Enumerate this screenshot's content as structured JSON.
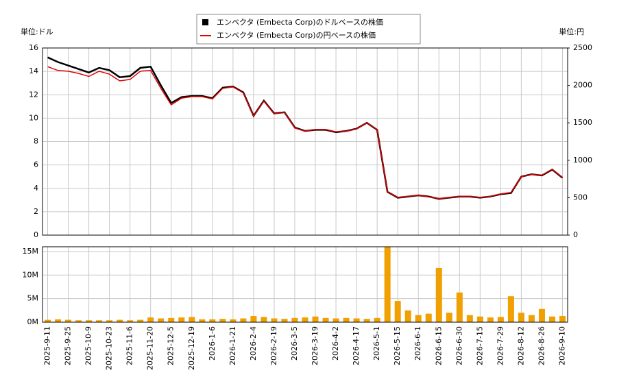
{
  "chart_data": [
    {
      "type": "line",
      "left_unit": "単位:ドル",
      "right_unit": "単位:円",
      "x": [
        "2025-9-11",
        "2025-9-18",
        "2025-9-25",
        "2025-10-2",
        "2025-10-9",
        "2025-10-16",
        "2025-10-23",
        "2025-10-30",
        "2025-11-6",
        "2025-11-13",
        "2025-11-20",
        "2025-11-27",
        "2025-12-5",
        "2025-12-12",
        "2025-12-19",
        "2025-12-29",
        "2026-1-6",
        "2026-1-13",
        "2026-1-21",
        "2026-1-28",
        "2026-2-4",
        "2026-2-11",
        "2026-2-19",
        "2026-2-26",
        "2026-3-5",
        "2026-3-12",
        "2026-3-19",
        "2026-3-26",
        "2026-4-2",
        "2026-4-9",
        "2026-4-17",
        "2026-4-24",
        "2026-5-1",
        "2026-5-8",
        "2026-5-15",
        "2026-5-22",
        "2026-6-1",
        "2026-6-8",
        "2026-6-15",
        "2026-6-22",
        "2026-6-30",
        "2026-7-7",
        "2026-7-15",
        "2026-7-22",
        "2026-7-29",
        "2026-8-5",
        "2026-8-12",
        "2026-8-19",
        "2026-8-26",
        "2026-9-2",
        "2026-9-10"
      ],
      "series": [
        {
          "name": "エンベクタ (Embecta Corp)のドルベースの株価",
          "color": "#000000",
          "axis": "y",
          "values": [
            15.2,
            14.8,
            14.5,
            14.2,
            13.9,
            14.3,
            14.1,
            13.5,
            13.6,
            14.3,
            14.4,
            12.8,
            11.3,
            11.8,
            11.9,
            11.9,
            11.7,
            12.6,
            12.7,
            12.2,
            10.2,
            11.5,
            10.4,
            10.5,
            9.2,
            8.9,
            9.0,
            9.0,
            8.8,
            8.9,
            9.1,
            9.6,
            9.0,
            3.7,
            3.2,
            3.3,
            3.4,
            3.3,
            3.1,
            3.2,
            3.3,
            3.3,
            3.2,
            3.3,
            3.5,
            3.6,
            5.0,
            5.2,
            5.1,
            5.6,
            4.9
          ]
        },
        {
          "name": "エンベクタ (Embecta Corp)の円ベースの株価",
          "color": "#e00000",
          "axis": "y2",
          "values": [
            2250,
            2200,
            2190,
            2160,
            2120,
            2190,
            2150,
            2060,
            2080,
            2190,
            2200,
            1960,
            1740,
            1830,
            1850,
            1850,
            1820,
            1960,
            1980,
            1900,
            1590,
            1790,
            1620,
            1640,
            1430,
            1390,
            1410,
            1410,
            1380,
            1390,
            1420,
            1500,
            1410,
            580,
            500,
            520,
            530,
            510,
            490,
            500,
            520,
            520,
            500,
            520,
            550,
            570,
            780,
            810,
            800,
            880,
            770
          ]
        }
      ],
      "ylim": [
        0,
        16
      ],
      "yticks": [
        0,
        2,
        4,
        6,
        8,
        10,
        12,
        14,
        16
      ],
      "y2lim": [
        0,
        2500
      ],
      "y2ticks": [
        0,
        500,
        1000,
        1500,
        2000,
        2500
      ],
      "grid": true
    },
    {
      "type": "bar",
      "color": "#f0a000",
      "x": [
        "2025-9-11",
        "2025-9-18",
        "2025-9-25",
        "2025-10-2",
        "2025-10-9",
        "2025-10-16",
        "2025-10-23",
        "2025-10-30",
        "2025-11-6",
        "2025-11-13",
        "2025-11-20",
        "2025-11-27",
        "2025-12-5",
        "2025-12-12",
        "2025-12-19",
        "2025-12-29",
        "2026-1-6",
        "2026-1-13",
        "2026-1-21",
        "2026-1-28",
        "2026-2-4",
        "2026-2-11",
        "2026-2-19",
        "2026-2-26",
        "2026-3-5",
        "2026-3-12",
        "2026-3-19",
        "2026-3-26",
        "2026-4-2",
        "2026-4-9",
        "2026-4-17",
        "2026-4-24",
        "2026-5-1",
        "2026-5-8",
        "2026-5-15",
        "2026-5-22",
        "2026-6-1",
        "2026-6-8",
        "2026-6-15",
        "2026-6-22",
        "2026-6-30",
        "2026-7-7",
        "2026-7-15",
        "2026-7-22",
        "2026-7-29",
        "2026-8-5",
        "2026-8-12",
        "2026-8-19",
        "2026-8-26",
        "2026-9-2",
        "2026-9-10"
      ],
      "values": [
        0.5,
        0.6,
        0.5,
        0.4,
        0.4,
        0.4,
        0.4,
        0.5,
        0.4,
        0.5,
        1.0,
        0.8,
        0.9,
        1.0,
        1.1,
        0.6,
        0.6,
        0.7,
        0.6,
        0.8,
        1.3,
        1.1,
        0.8,
        0.7,
        0.9,
        1.0,
        1.2,
        0.9,
        0.8,
        0.9,
        0.8,
        0.7,
        0.9,
        16,
        4.5,
        2.5,
        1.5,
        1.8,
        11.5,
        2.0,
        6.3,
        1.5,
        1.2,
        1.0,
        1.1,
        5.5,
        2.0,
        1.5,
        2.8,
        1.2,
        1.3
      ],
      "xticks": [
        "2025-9-11",
        "2025-9-25",
        "2025-10-9",
        "2025-10-23",
        "2025-11-6",
        "2025-11-20",
        "2025-12-5",
        "2025-12-19",
        "2026-1-6",
        "2026-1-21",
        "2026-2-4",
        "2026-2-19",
        "2026-3-5",
        "2026-3-19",
        "2026-4-2",
        "2026-4-17",
        "2026-5-1",
        "2026-5-15",
        "2026-6-1",
        "2026-6-15",
        "2026-6-30",
        "2026-7-15",
        "2026-7-29",
        "2026-8-12",
        "2026-8-26",
        "2026-9-10"
      ],
      "ylim": [
        0,
        16
      ],
      "yticks": [
        {
          "value": 0,
          "label": "0M"
        },
        {
          "value": 5,
          "label": "5M"
        },
        {
          "value": 10,
          "label": "10M"
        },
        {
          "value": 15,
          "label": "15M"
        }
      ],
      "grid": true
    }
  ]
}
